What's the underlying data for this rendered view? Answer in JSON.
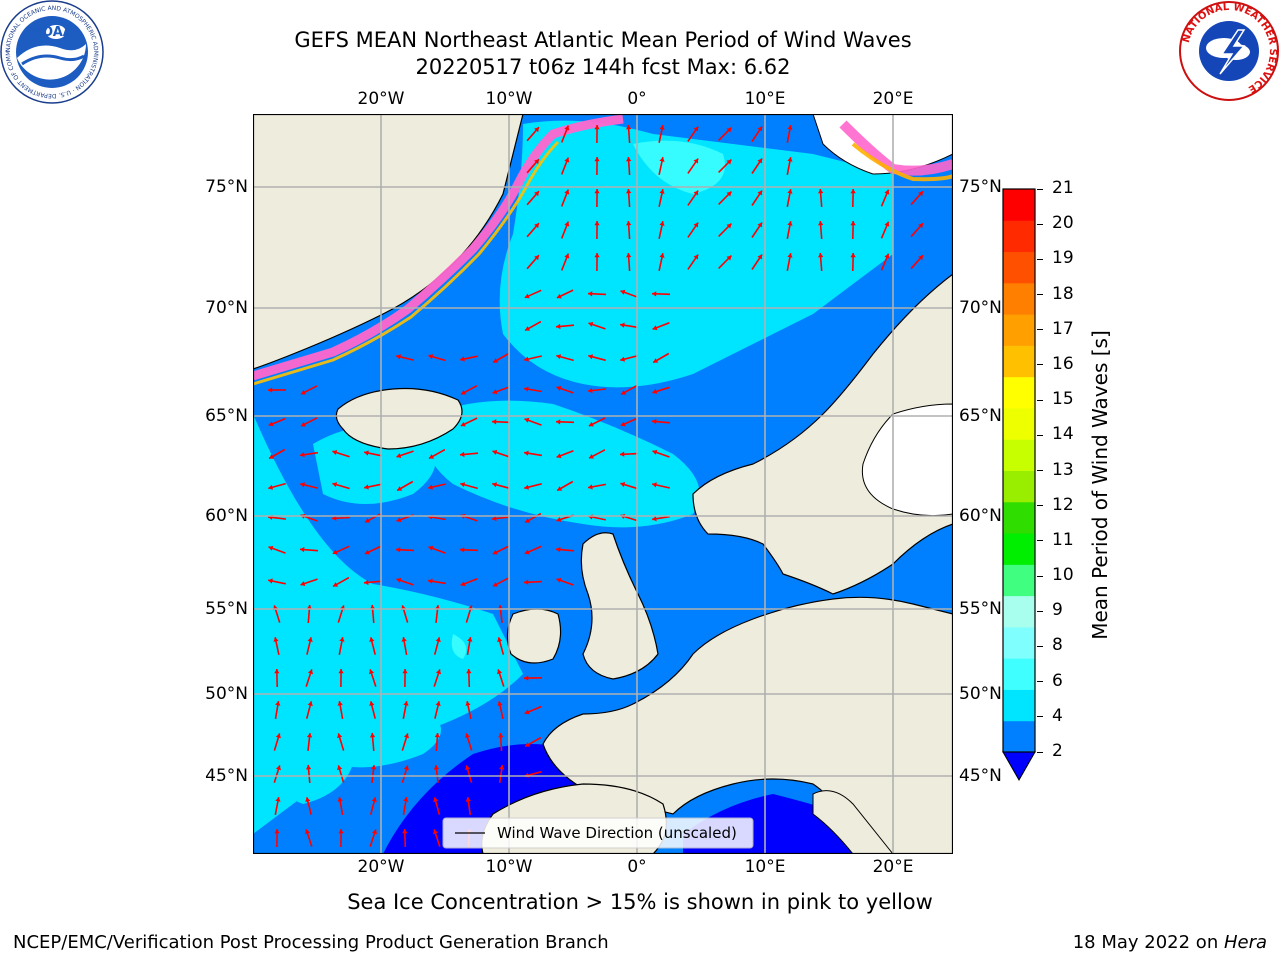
{
  "header": {
    "title_line1": "GEFS MEAN Northeast Atlantic Mean Period of Wind Waves",
    "title_line2": "20220517 t06z 144h fcst   Max: 6.62"
  },
  "logos": {
    "noaa_text": "NOAA",
    "noaa_ring": "NATIONAL OCEANIC AND ATMOSPHERIC ADMINISTRATION · U.S. DEPARTMENT OF COMMERCE",
    "nws_ring": "NATIONAL WEATHER SERVICE"
  },
  "map": {
    "lon_labels": [
      "20°W",
      "10°W",
      "0°",
      "10°E",
      "20°E"
    ],
    "lat_labels": [
      "75°N",
      "70°N",
      "65°N",
      "60°N",
      "55°N",
      "50°N",
      "45°N"
    ],
    "legend_label": "Wind Wave Direction (unscaled)",
    "arrow_color": "#ff0000",
    "land_color": "#eeecdc",
    "ocean_base_color": "#0080ff"
  },
  "colorbar": {
    "label": "Mean Period of Wind Waves [s]",
    "tick_labels": [
      "2",
      "4",
      "6",
      "8",
      "9",
      "10",
      "11",
      "12",
      "13",
      "14",
      "15",
      "16",
      "17",
      "18",
      "19",
      "20",
      "21"
    ],
    "colors": [
      "#0080ff",
      "#00e5ff",
      "#40ffff",
      "#80ffff",
      "#a8ffee",
      "#40ff80",
      "#00ee00",
      "#30dd00",
      "#99ee00",
      "#c8ff00",
      "#eeff00",
      "#ffff00",
      "#ffc000",
      "#ffa000",
      "#ff8000",
      "#ff5000",
      "#ff2a00",
      "#ff0000"
    ],
    "under_color": "#0000ff"
  },
  "notes": {
    "ice_note": "Sea Ice Concentration > 15% is shown in pink to yellow"
  },
  "footer": {
    "left": "NCEP/EMC/Verification Post Processing Product Generation Branch",
    "right_date": "18 May 2022 on ",
    "right_host": "Hera"
  }
}
